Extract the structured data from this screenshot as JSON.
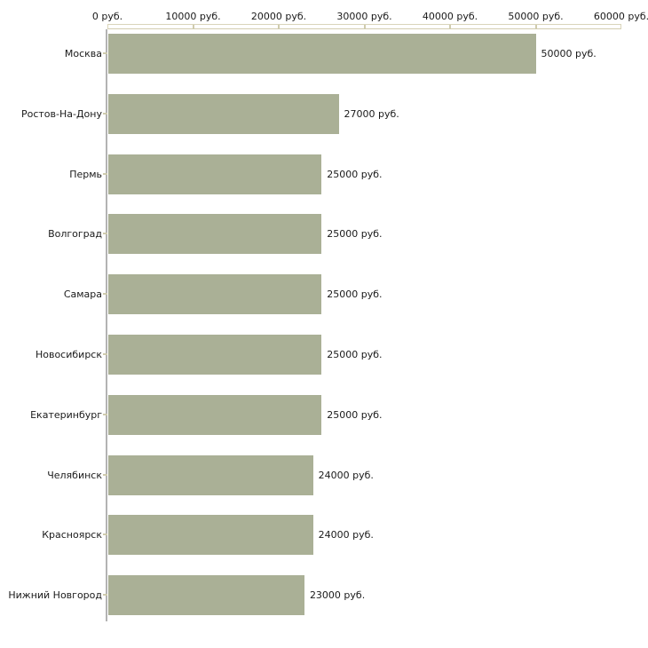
{
  "chart_data": {
    "type": "bar",
    "orientation": "horizontal",
    "unit": "руб.",
    "categories": [
      "Москва",
      "Ростов-На-Дону",
      "Пермь",
      "Волгоград",
      "Самара",
      "Новосибирск",
      "Екатеринбург",
      "Челябинск",
      "Красноярск",
      "Нижний Новгород"
    ],
    "values": [
      50000,
      27000,
      25000,
      25000,
      25000,
      25000,
      25000,
      24000,
      24000,
      23000
    ],
    "bar_labels": [
      "50000 руб.",
      "27000 руб.",
      "25000 руб.",
      "25000 руб.",
      "25000 руб.",
      "25000 руб.",
      "25000 руб.",
      "24000 руб.",
      "24000 руб.",
      "23000 руб."
    ],
    "x_axis": {
      "position": "top",
      "min": 0,
      "max": 60000,
      "tick_values": [
        0,
        10000,
        20000,
        30000,
        40000,
        50000,
        60000
      ],
      "tick_labels": [
        "0 руб.",
        "10000 руб.",
        "20000 руб.",
        "30000 руб.",
        "40000 руб.",
        "50000 руб.",
        "60000 руб."
      ]
    },
    "grid": false,
    "legend": false,
    "colors": {
      "bar": "#aab096",
      "axis_band": "#d9d5ba",
      "tick": "#cfcbad",
      "y_axis_line": "#b3b3b3",
      "text": "#1a1a1a",
      "background": "#ffffff"
    }
  }
}
